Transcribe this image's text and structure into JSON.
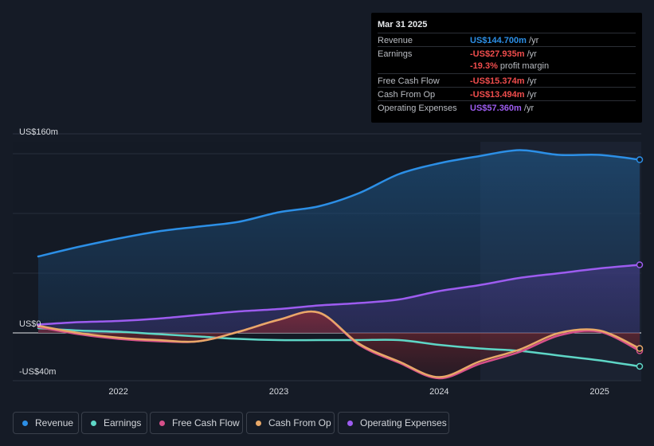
{
  "tooltip": {
    "date": "Mar 31 2025",
    "rows": [
      {
        "label": "Revenue",
        "value": "US$144.700m",
        "unit": "/yr"
      },
      {
        "label": "Earnings",
        "value": "-US$27.935m",
        "unit": "/yr"
      },
      {
        "label": "Free Cash Flow",
        "value": "-US$15.374m",
        "unit": "/yr"
      },
      {
        "label": "Cash From Op",
        "value": "-US$13.494m",
        "unit": "/yr"
      },
      {
        "label": "Operating Expenses",
        "value": "US$57.360m",
        "unit": "/yr"
      }
    ],
    "margin_value": "-19.3%",
    "margin_label": "profit margin"
  },
  "colors": {
    "revenue": "#2c8fe6",
    "earnings": "#5ed6c6",
    "free_cash_flow": "#d6508a",
    "cash_from_op": "#e8a868",
    "operating_expenses": "#9d5cf0"
  },
  "chart_data": {
    "type": "area",
    "title": "",
    "xlabel": "",
    "ylabel": "",
    "y_axis_labels": [
      "US$160m",
      "US$0",
      "-US$40m"
    ],
    "x_tick_labels": [
      "2022",
      "2023",
      "2024",
      "2025"
    ],
    "ylim": [
      -40,
      160
    ],
    "xlim": [
      2021.5,
      2025.25
    ],
    "x": [
      2021.5,
      2021.75,
      2022.0,
      2022.25,
      2022.5,
      2022.75,
      2023.0,
      2023.25,
      2023.5,
      2023.75,
      2024.0,
      2024.25,
      2024.5,
      2024.75,
      2025.0,
      2025.25
    ],
    "series": [
      {
        "name": "Revenue",
        "values": [
          64,
          72,
          79,
          85,
          89,
          93,
          101,
          106,
          117,
          133,
          142,
          148,
          153,
          149,
          149,
          145
        ]
      },
      {
        "name": "Earnings",
        "values": [
          4,
          2,
          1,
          -1,
          -3,
          -5,
          -6,
          -6,
          -6,
          -6,
          -10,
          -13,
          -15,
          -19,
          -23,
          -28
        ]
      },
      {
        "name": "Free Cash Flow",
        "values": [
          5,
          -1,
          -5,
          -7,
          -7,
          1,
          11,
          17,
          -10,
          -25,
          -38,
          -26,
          -16,
          -2,
          1,
          -15
        ]
      },
      {
        "name": "Cash From Op",
        "values": [
          6,
          0,
          -4,
          -6,
          -7,
          1,
          11,
          17,
          -9,
          -24,
          -37,
          -24,
          -14,
          0,
          2,
          -13
        ]
      },
      {
        "name": "Operating Expenses",
        "values": [
          7,
          9,
          10,
          12,
          15,
          18,
          20,
          23,
          25,
          28,
          35,
          40,
          46,
          50,
          54,
          57
        ]
      }
    ],
    "legend": [
      "Revenue",
      "Earnings",
      "Free Cash Flow",
      "Cash From Op",
      "Operating Expenses"
    ],
    "legend_position": "bottom-left",
    "highlight_label": "Mar 31 2025"
  }
}
